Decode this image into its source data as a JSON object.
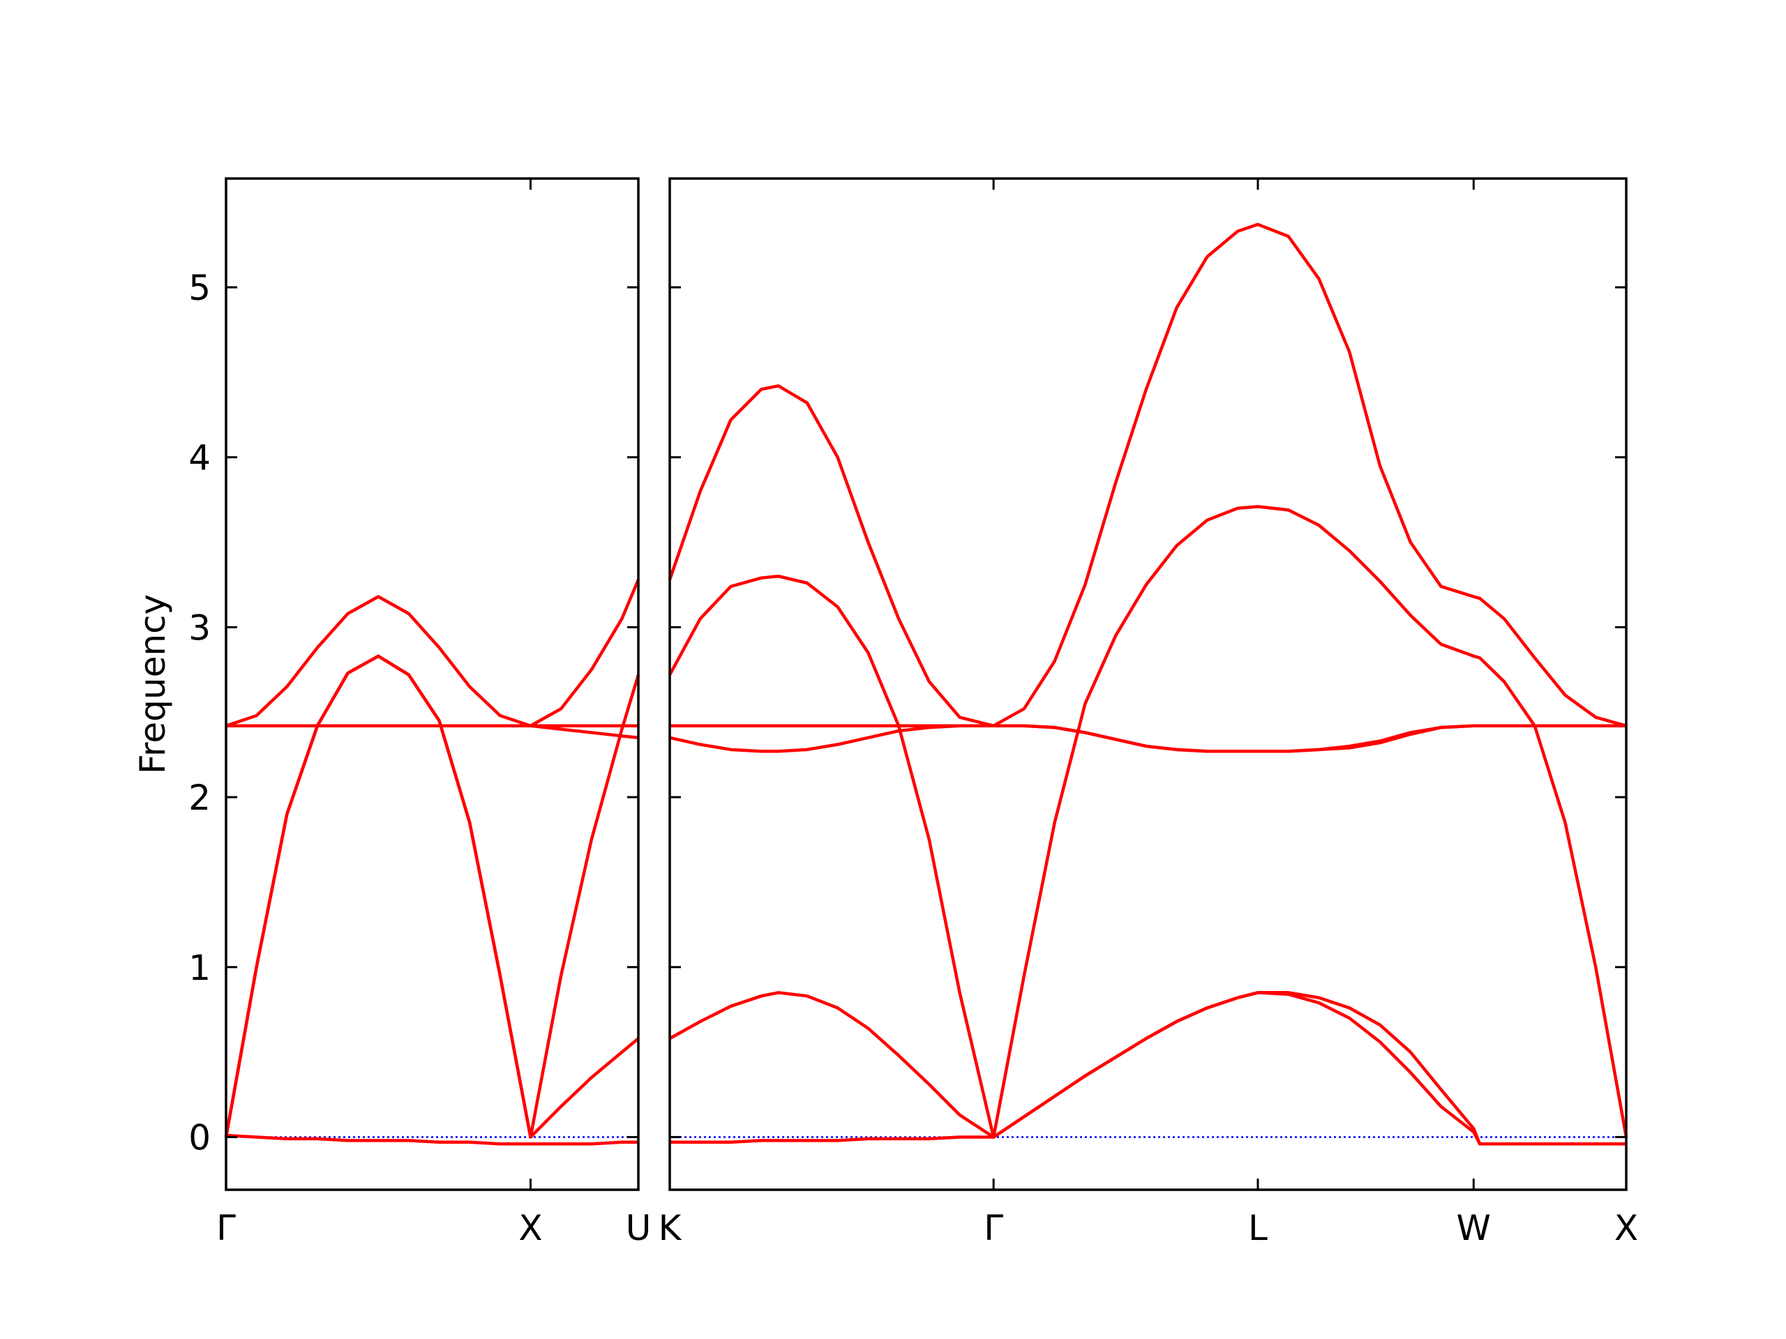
{
  "chart_data": [
    {
      "type": "line",
      "ylabel": "Frequency",
      "xlim": [
        0,
        1.354
      ],
      "ylim": [
        -0.31,
        5.64
      ],
      "xticks": [
        {
          "value": 0,
          "label": "Γ"
        },
        {
          "value": 1,
          "label": "X"
        },
        {
          "value": 1.354,
          "label": "U"
        }
      ],
      "yticks": [
        0,
        1,
        2,
        3,
        4,
        5
      ],
      "zero_line_color": "#0000ff",
      "x": [
        0,
        0.1,
        0.2,
        0.3,
        0.4,
        0.5,
        0.6,
        0.7,
        0.8,
        0.9,
        1.0,
        1.1,
        1.2,
        1.3,
        1.354
      ],
      "series": [
        {
          "color": "#ff0000",
          "values": [
            0.01,
            0.0,
            -0.01,
            -0.01,
            -0.02,
            -0.02,
            -0.02,
            -0.03,
            -0.03,
            -0.04,
            -0.04,
            -0.04,
            -0.04,
            -0.03,
            -0.03
          ]
        },
        {
          "color": "#ff0000",
          "values": [
            0,
            1.0,
            1.9,
            2.42,
            2.73,
            2.83,
            2.72,
            2.45,
            1.85,
            0.95,
            0,
            0.18,
            0.35,
            0.5,
            0.58
          ]
        },
        {
          "color": "#ff0000",
          "values": [
            0,
            1.0,
            1.9,
            2.42,
            2.73,
            2.83,
            2.72,
            2.45,
            1.85,
            0.95,
            0,
            0.95,
            1.75,
            2.4,
            2.72
          ]
        },
        {
          "color": "#ff0000",
          "values": [
            2.42,
            2.42,
            2.42,
            2.42,
            2.42,
            2.42,
            2.42,
            2.42,
            2.42,
            2.42,
            2.42,
            2.42,
            2.42,
            2.42,
            2.42
          ]
        },
        {
          "color": "#ff0000",
          "values": [
            2.42,
            2.42,
            2.42,
            2.42,
            2.42,
            2.42,
            2.42,
            2.42,
            2.42,
            2.42,
            2.42,
            2.4,
            2.38,
            2.36,
            2.35
          ]
        },
        {
          "color": "#ff0000",
          "values": [
            2.42,
            2.48,
            2.65,
            2.88,
            3.08,
            3.18,
            3.08,
            2.88,
            2.65,
            2.48,
            2.42,
            2.52,
            2.75,
            3.05,
            3.28
          ]
        }
      ]
    },
    {
      "type": "line",
      "xlim": [
        0,
        3.134
      ],
      "ylim": [
        -0.31,
        5.64
      ],
      "xticks": [
        {
          "value": 0,
          "label": "K"
        },
        {
          "value": 1.061,
          "label": "Γ"
        },
        {
          "value": 1.927,
          "label": "L"
        },
        {
          "value": 2.634,
          "label": "W"
        },
        {
          "value": 3.134,
          "label": "X"
        }
      ],
      "zero_line_color": "#0000ff",
      "x": [
        0,
        0.1,
        0.2,
        0.3,
        0.356,
        0.45,
        0.55,
        0.65,
        0.75,
        0.85,
        0.95,
        1.061,
        1.161,
        1.261,
        1.361,
        1.461,
        1.561,
        1.661,
        1.761,
        1.861,
        1.927,
        2.027,
        2.127,
        2.227,
        2.327,
        2.427,
        2.527,
        2.634,
        2.654,
        2.734,
        2.834,
        2.934,
        3.034,
        3.134
      ],
      "series": [
        {
          "color": "#ff0000",
          "values": [
            -0.03,
            -0.03,
            -0.03,
            -0.02,
            -0.02,
            -0.02,
            -0.02,
            -0.01,
            -0.01,
            -0.01,
            0,
            0,
            0.12,
            0.24,
            0.36,
            0.47,
            0.58,
            0.68,
            0.76,
            0.82,
            0.85,
            0.84,
            0.79,
            0.7,
            0.56,
            0.38,
            0.18,
            0.03,
            -0.04,
            -0.04,
            -0.04,
            -0.04,
            -0.04,
            -0.04
          ]
        },
        {
          "color": "#ff0000",
          "values": [
            0.58,
            0.68,
            0.77,
            0.83,
            0.85,
            0.83,
            0.76,
            0.64,
            0.48,
            0.31,
            0.13,
            0,
            0.12,
            0.24,
            0.36,
            0.47,
            0.58,
            0.68,
            0.76,
            0.82,
            0.85,
            0.85,
            0.82,
            0.76,
            0.66,
            0.5,
            0.28,
            0.05,
            -0.04,
            -0.04,
            -0.04,
            -0.04,
            -0.04,
            -0.04
          ]
        },
        {
          "color": "#ff0000",
          "values": [
            2.72,
            3.05,
            3.24,
            3.29,
            3.3,
            3.26,
            3.12,
            2.85,
            2.42,
            1.75,
            0.85,
            0,
            0.95,
            1.85,
            2.55,
            2.95,
            3.25,
            3.48,
            3.63,
            3.7,
            3.71,
            3.69,
            3.6,
            3.45,
            3.27,
            3.07,
            2.9,
            2.83,
            2.82,
            2.68,
            2.42,
            1.85,
            1.0,
            0
          ]
        },
        {
          "color": "#ff0000",
          "values": [
            3.28,
            3.8,
            4.22,
            4.4,
            4.42,
            4.32,
            4.0,
            3.5,
            3.05,
            2.68,
            2.47,
            2.42,
            2.52,
            2.8,
            3.25,
            3.85,
            4.4,
            4.88,
            5.18,
            5.33,
            5.37,
            5.3,
            5.05,
            4.62,
            3.95,
            3.5,
            3.24,
            3.18,
            3.17,
            3.05,
            2.82,
            2.6,
            2.47,
            2.42
          ]
        },
        {
          "color": "#ff0000",
          "values": [
            2.35,
            2.31,
            2.28,
            2.27,
            2.27,
            2.28,
            2.31,
            2.35,
            2.39,
            2.41,
            2.42,
            2.42,
            2.42,
            2.41,
            2.38,
            2.34,
            2.3,
            2.28,
            2.27,
            2.27,
            2.27,
            2.27,
            2.28,
            2.29,
            2.32,
            2.37,
            2.41,
            2.42,
            2.42,
            2.42,
            2.42,
            2.42,
            2.42,
            2.42
          ]
        },
        {
          "color": "#ff0000",
          "values": [
            2.42,
            2.42,
            2.42,
            2.42,
            2.42,
            2.42,
            2.42,
            2.42,
            2.42,
            2.42,
            2.42,
            2.42,
            2.42,
            2.41,
            2.38,
            2.34,
            2.3,
            2.28,
            2.27,
            2.27,
            2.27,
            2.27,
            2.28,
            2.3,
            2.33,
            2.38,
            2.41,
            2.42,
            2.42,
            2.42,
            2.42,
            2.42,
            2.42,
            2.42
          ]
        }
      ]
    }
  ]
}
